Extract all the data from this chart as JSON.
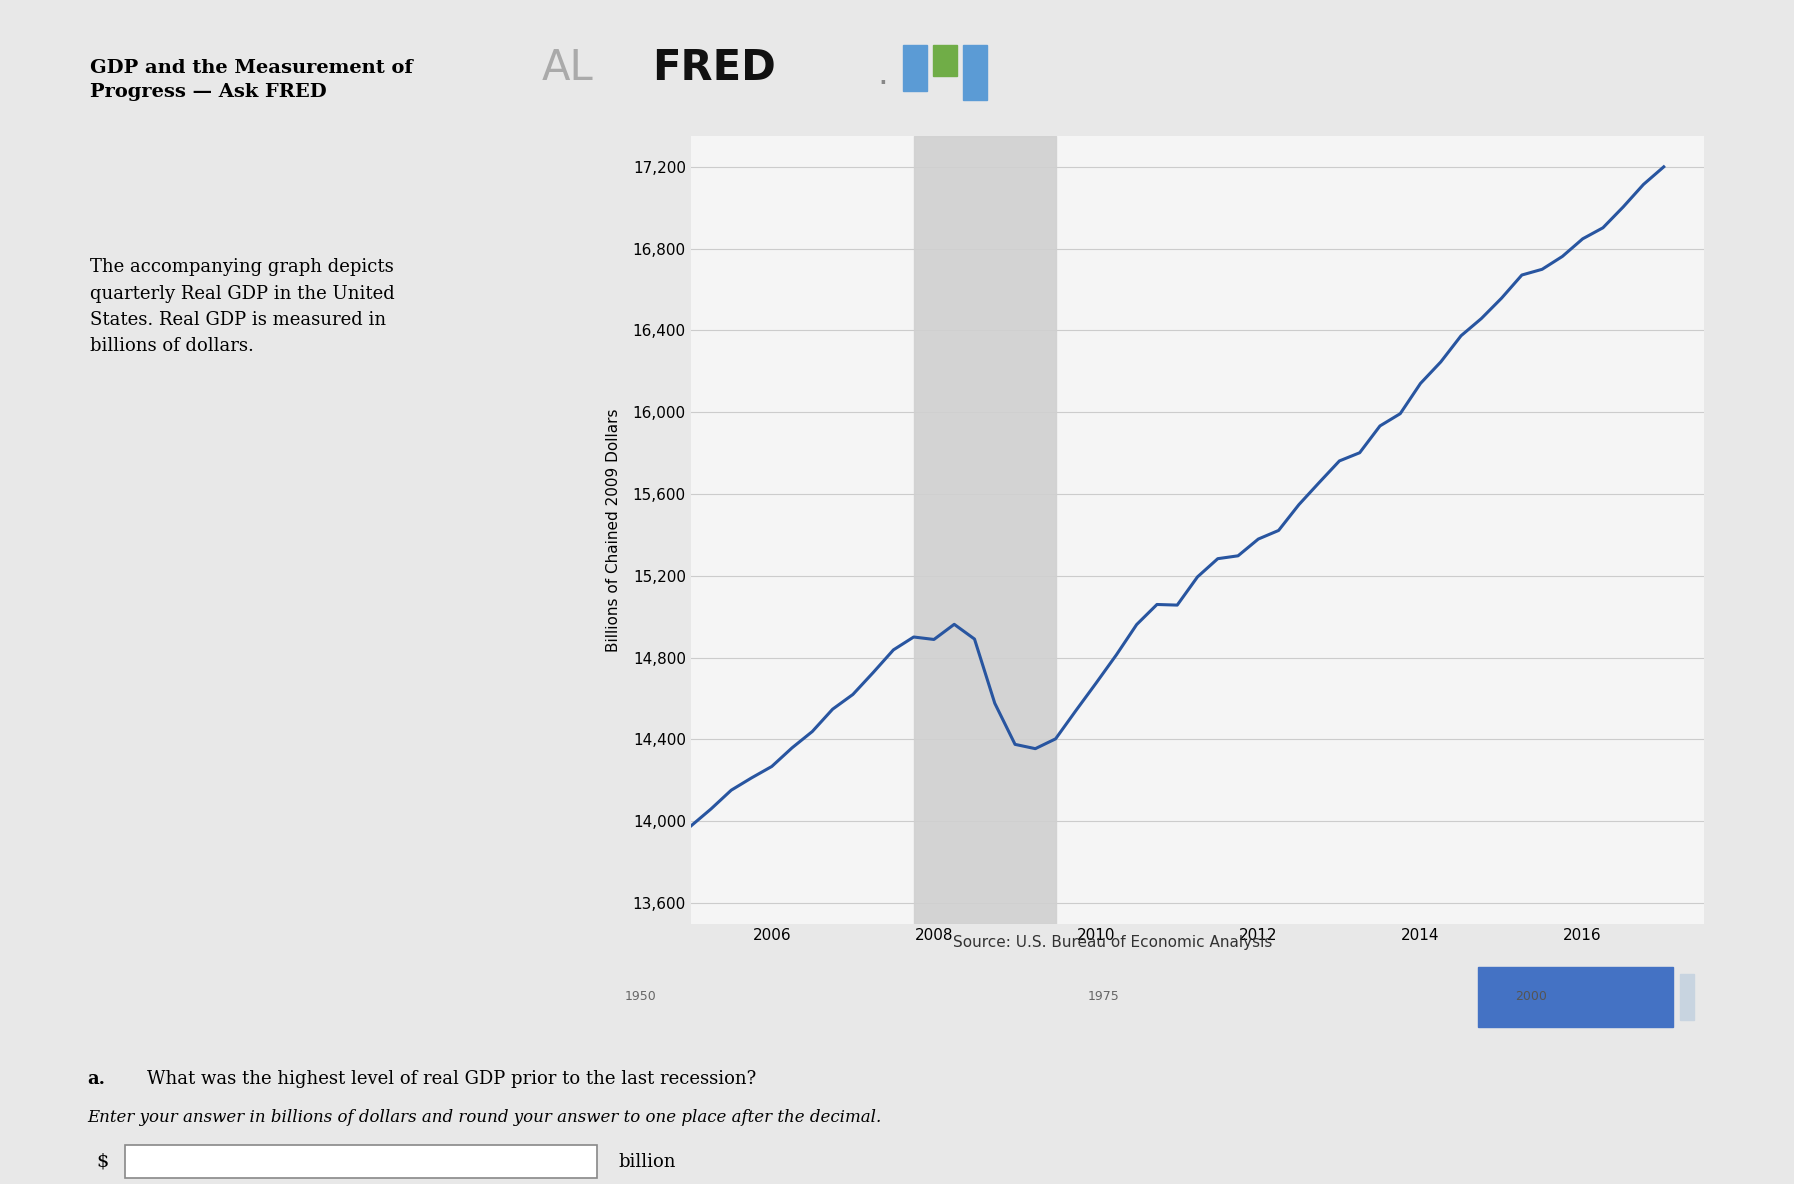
{
  "title_text": "GDP and the Measurement of\nProgress — Ask FRED",
  "body_text": "The accompanying graph depicts\nquarterly Real GDP in the United\nStates. Real GDP is measured in\nbillions of dollars.",
  "question_bold": "a.",
  "question_main": "What was the highest level of real GDP prior to the last recession?",
  "question_italic": "Enter your answer in billions of dollars and round your answer to one place after the decimal.",
  "answer_label": "billion",
  "dollar_sign": "$",
  "source_text": "Source: U.S. Bureau of Economic Analysis",
  "ylabel": "Billions of Chained 2009 Dollars",
  "yticks": [
    13600,
    14000,
    14400,
    14800,
    15200,
    15600,
    16000,
    16400,
    16800,
    17200
  ],
  "xticks": [
    2006,
    2008,
    2010,
    2012,
    2014,
    2016
  ],
  "ylim": [
    13500,
    17350
  ],
  "xlim": [
    2005.0,
    2017.5
  ],
  "recession_start": 2007.75,
  "recession_end": 2009.5,
  "chart_bg": "#dce6f0",
  "recession_color": "#d0d0d0",
  "plot_bg": "#f5f5f5",
  "line_color": "#2855a0",
  "page_bg": "#ffffff",
  "outer_bg": "#e8e8e8",
  "gdp_years": [
    2005.0,
    2005.25,
    2005.5,
    2005.75,
    2006.0,
    2006.25,
    2006.5,
    2006.75,
    2007.0,
    2007.25,
    2007.5,
    2007.75,
    2008.0,
    2008.25,
    2008.5,
    2008.75,
    2009.0,
    2009.25,
    2009.5,
    2009.75,
    2010.0,
    2010.25,
    2010.5,
    2010.75,
    2011.0,
    2011.25,
    2011.5,
    2011.75,
    2012.0,
    2012.25,
    2012.5,
    2012.75,
    2013.0,
    2013.25,
    2013.5,
    2013.75,
    2014.0,
    2014.25,
    2014.5,
    2014.75,
    2015.0,
    2015.25,
    2015.5,
    2015.75,
    2016.0,
    2016.25,
    2016.5,
    2016.75,
    2017.0
  ],
  "gdp_values": [
    13976,
    14060,
    14152,
    14212,
    14268,
    14359,
    14439,
    14548,
    14620,
    14727,
    14838,
    14901,
    14889,
    14963,
    14891,
    14577,
    14376,
    14355,
    14403,
    14541,
    14676,
    14814,
    14962,
    15060,
    15057,
    15195,
    15284,
    15298,
    15380,
    15422,
    15548,
    15656,
    15762,
    15802,
    15933,
    15993,
    16141,
    16246,
    16374,
    16458,
    16558,
    16671,
    16699,
    16762,
    16848,
    16902,
    17004,
    17114,
    17200
  ]
}
